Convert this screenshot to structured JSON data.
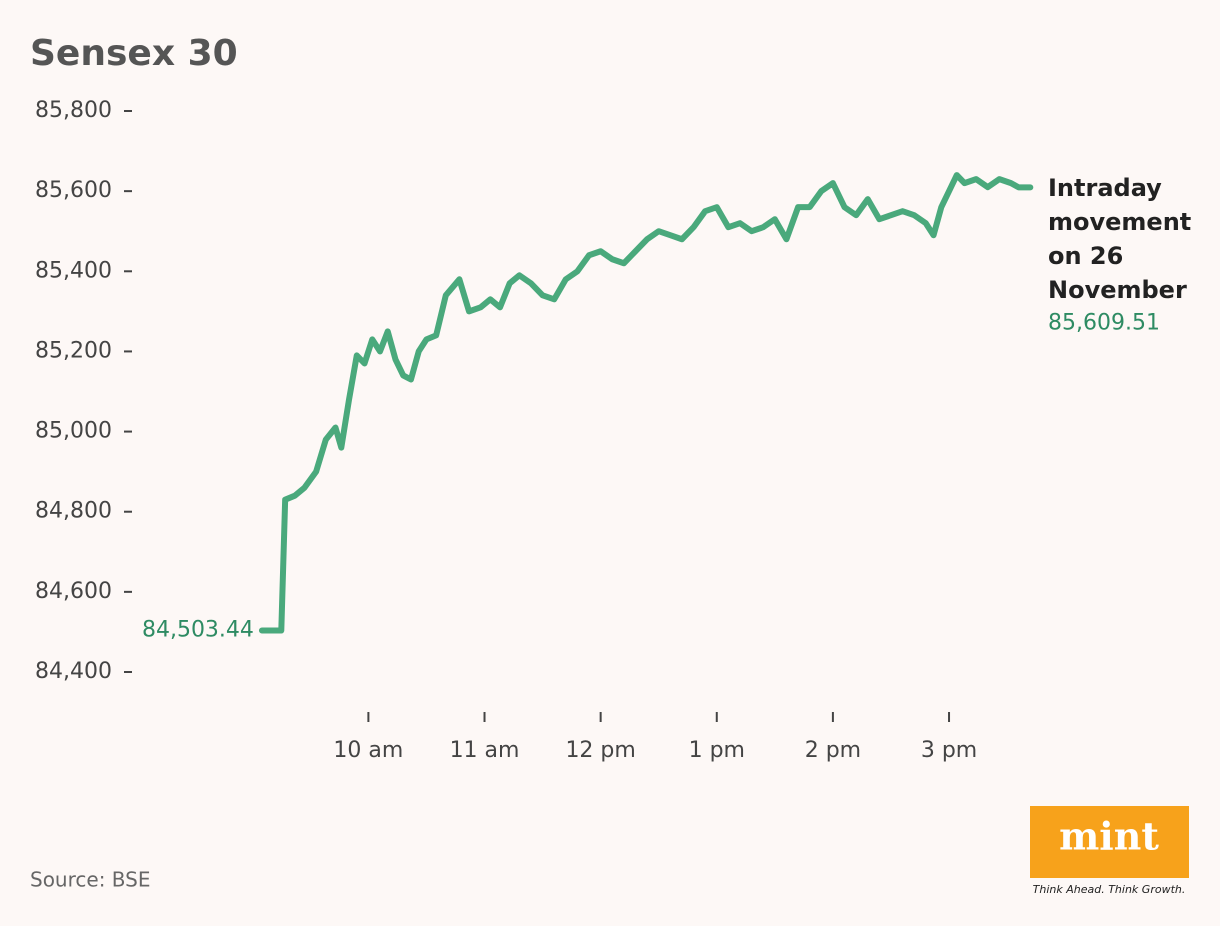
{
  "chart_data": {
    "type": "line",
    "title": "Sensex 30",
    "color": "#4aa97c",
    "x": [
      545,
      555,
      557,
      562,
      567,
      573,
      578,
      583,
      586,
      590,
      594,
      598,
      602,
      606,
      610,
      614,
      618,
      622,
      626,
      630,
      635,
      640,
      647,
      652,
      658,
      663,
      668,
      673,
      678,
      684,
      690,
      696,
      702,
      708,
      714,
      720,
      726,
      732,
      738,
      744,
      750,
      756,
      762,
      768,
      774,
      780,
      786,
      792,
      798,
      804,
      810,
      816,
      822,
      828,
      834,
      840,
      846,
      852,
      858,
      864,
      870,
      876,
      882,
      888,
      892,
      896,
      900,
      904,
      908,
      914,
      920,
      926,
      932,
      936,
      942
    ],
    "values": [
      84503.44,
      84503.44,
      84830,
      84840,
      84860,
      84900,
      84980,
      85010,
      84960,
      85080,
      85190,
      85170,
      85230,
      85200,
      85250,
      85180,
      85140,
      85130,
      85200,
      85230,
      85240,
      85340,
      85380,
      85300,
      85310,
      85330,
      85310,
      85370,
      85390,
      85370,
      85340,
      85330,
      85380,
      85400,
      85440,
      85450,
      85430,
      85420,
      85450,
      85480,
      85500,
      85490,
      85480,
      85510,
      85550,
      85560,
      85510,
      85520,
      85500,
      85510,
      85530,
      85480,
      85560,
      85560,
      85600,
      85620,
      85560,
      85540,
      85580,
      85530,
      85540,
      85550,
      85540,
      85520,
      85490,
      85560,
      85600,
      85640,
      85620,
      85630,
      85610,
      85630,
      85620,
      85609.51,
      85609.51
    ],
    "value_labels": [
      "84,503.44",
      null,
      null,
      null,
      null,
      null,
      null,
      null,
      null,
      null,
      null,
      null,
      null,
      null,
      null,
      null,
      null,
      null,
      null,
      null,
      null,
      null,
      null,
      null,
      null,
      null,
      null,
      null,
      null,
      null,
      null,
      null,
      null,
      null,
      null,
      null,
      null,
      null,
      null,
      null,
      null,
      null,
      null,
      null,
      null,
      null,
      null,
      null,
      null,
      null,
      null,
      null,
      null,
      null,
      null,
      null,
      null,
      null,
      null,
      null,
      null,
      null,
      null,
      null,
      null,
      null,
      null,
      null,
      null,
      null,
      null,
      null,
      null,
      null,
      "85,609.51"
    ],
    "xlim": [
      482,
      947
    ],
    "xticks": [
      {
        "value": 600,
        "label": "10 am"
      },
      {
        "value": 660,
        "label": "11 am"
      },
      {
        "value": 720,
        "label": "12 pm"
      },
      {
        "value": 780,
        "label": "1 pm"
      },
      {
        "value": 840,
        "label": "2 pm"
      },
      {
        "value": 900,
        "label": "3 pm"
      }
    ],
    "ylim": [
      84400,
      85800
    ],
    "yticks": [
      {
        "value": 84400,
        "label": "84,400"
      },
      {
        "value": 84600,
        "label": "84,600"
      },
      {
        "value": 84800,
        "label": "84,800"
      },
      {
        "value": 85000,
        "label": "85,000"
      },
      {
        "value": 85200,
        "label": "85,200"
      },
      {
        "value": 85400,
        "label": "85,400"
      },
      {
        "value": 85600,
        "label": "85,600"
      },
      {
        "value": 85800,
        "label": "85,800"
      }
    ],
    "annotation": [
      "Intraday",
      "movement",
      "on 26",
      "November"
    ],
    "source": "Source: BSE",
    "logo": "mint",
    "tagline": "Think Ahead. Think Growth."
  }
}
